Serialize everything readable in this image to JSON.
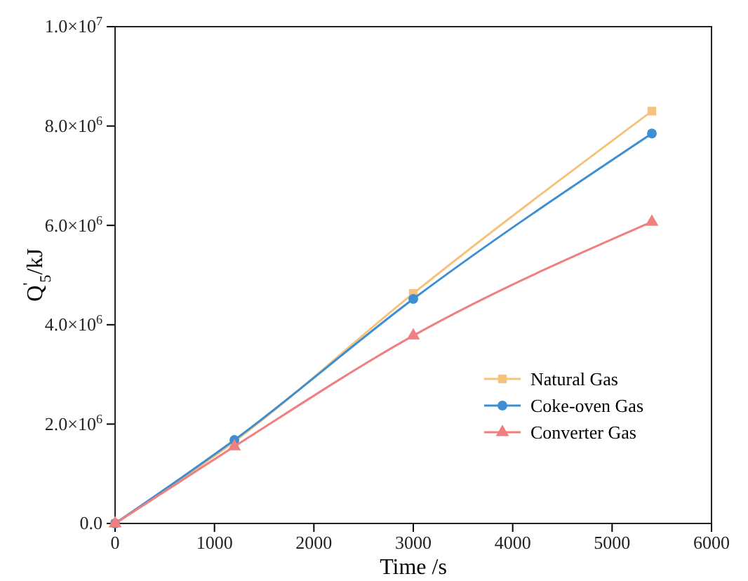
{
  "chart_data": {
    "type": "line",
    "xlabel": "Time /s",
    "ylabel": "Q$^{'}$$_{5}$/kJ",
    "x": [
      0,
      1200,
      3000,
      5400
    ],
    "xlim": [
      0,
      6000
    ],
    "xticks": [
      0,
      1000,
      2000,
      3000,
      4000,
      5000,
      6000
    ],
    "ylim": [
      0,
      10000000
    ],
    "yticks": [
      {
        "value": 0,
        "label": "0.0"
      },
      {
        "value": 2000000,
        "label": "2.0×10$^{6}$"
      },
      {
        "value": 4000000,
        "label": "4.0×10$^{6}$"
      },
      {
        "value": 6000000,
        "label": "6.0×10$^{6}$"
      },
      {
        "value": 8000000,
        "label": "8.0×10$^{6}$"
      },
      {
        "value": 10000000,
        "label": "1.0×10$^{7}$"
      }
    ],
    "legend": "bottom right",
    "line_style": "solid",
    "series": [
      {
        "name": "Natural Gas",
        "color": "#f7c27e",
        "marker": "square",
        "values": [
          0,
          1650000,
          4630000,
          8300000
        ]
      },
      {
        "name": "Coke-oven Gas",
        "color": "#3d8fd1",
        "marker": "circle",
        "values": [
          0,
          1680000,
          4520000,
          7850000
        ]
      },
      {
        "name": "Converter Gas",
        "color": "#f07f80",
        "marker": "triangle",
        "values": [
          0,
          1550000,
          3780000,
          6070000
        ]
      }
    ]
  }
}
